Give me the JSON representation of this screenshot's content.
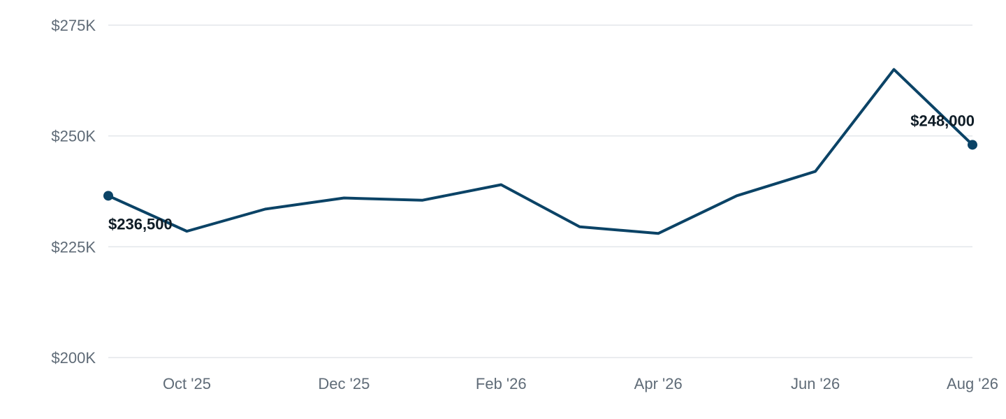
{
  "colors": {
    "series": "#0b4366",
    "grid": "#e3e6ea",
    "tick_text": "#5f6b77",
    "label_text": "#0f1c26"
  },
  "chart_data": {
    "type": "line",
    "title": "",
    "xlabel": "",
    "ylabel": "",
    "x": [
      "Sep '25",
      "Oct '25",
      "Nov '25",
      "Dec '25",
      "Jan '26",
      "Feb '26",
      "Mar '26",
      "Apr '26",
      "May '26",
      "Jun '26",
      "Jul '26",
      "Aug '26"
    ],
    "x_tick_labels": [
      "Oct '25",
      "Dec '25",
      "Feb '26",
      "Apr '26",
      "Jun '26",
      "Aug '26"
    ],
    "series": [
      {
        "values": [
          236500,
          228500,
          233500,
          236000,
          235500,
          239000,
          229500,
          228000,
          236500,
          242000,
          265000,
          248000
        ]
      }
    ],
    "ylim": [
      200000,
      275000
    ],
    "y_ticks": [
      200000,
      225000,
      250000,
      275000
    ],
    "y_tick_labels": [
      "$200K",
      "$225K",
      "$250K",
      "$275K"
    ],
    "data_labels": [
      {
        "index": 0,
        "text": "$236,500"
      },
      {
        "index": 11,
        "text": "$248,000"
      }
    ],
    "endpoint_markers": true,
    "grid": "horizontal",
    "legend": "none"
  }
}
